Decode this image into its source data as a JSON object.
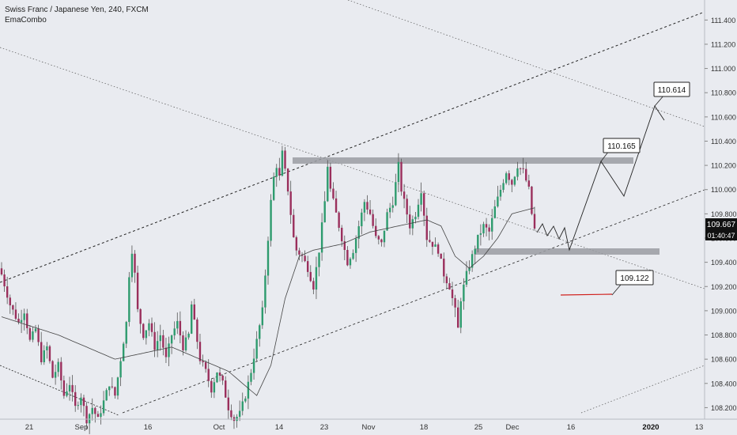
{
  "legend": {
    "symbol_line": "Swiss Franc / Japanese Yen, 240, FXCM",
    "indicator": "EmaCombo"
  },
  "colors": {
    "background": "#e9ebf0",
    "up_candle": "#2e9b6e",
    "down_candle": "#9a2f5c",
    "wick": "#555555",
    "zone": "#9a9ca2",
    "target_line": "#d0201c",
    "ema": "#444444",
    "last_price_bg": "#111111"
  },
  "chart_data": {
    "type": "candlestick",
    "symbol": "CHFJPY",
    "timeframe": "240",
    "source": "FXCM",
    "ylim": [
      108.17,
      111.5
    ],
    "y_ticks": [
      111.4,
      111.2,
      111.0,
      110.8,
      110.6,
      110.4,
      110.2,
      110.0,
      109.8,
      109.6,
      109.4,
      109.2,
      109.0,
      108.8,
      108.6,
      108.4,
      108.2
    ],
    "x_ticks": [
      "21",
      "Sep",
      "16",
      "Oct",
      "14",
      "23",
      "Nov",
      "18",
      "25",
      "Dec",
      "16",
      "2020",
      "13"
    ],
    "last_price": "109.667",
    "countdown": "01:40:47",
    "annotations": [
      {
        "label": "110.614",
        "value": 110.614
      },
      {
        "label": "110.165",
        "value": 110.165
      },
      {
        "label": "109.122",
        "value": 109.122
      }
    ],
    "resistance_zone": [
      110.17,
      110.22
    ],
    "support_zone": [
      109.44,
      109.49
    ],
    "target_line_value": 109.13,
    "price_path": [
      [
        0,
        109.3
      ],
      [
        3,
        109.05
      ],
      [
        6,
        108.9
      ],
      [
        8,
        109.0
      ],
      [
        10,
        108.75
      ],
      [
        12,
        108.85
      ],
      [
        14,
        108.6
      ],
      [
        16,
        108.7
      ],
      [
        18,
        108.45
      ],
      [
        20,
        108.55
      ],
      [
        22,
        108.3
      ],
      [
        24,
        108.4
      ],
      [
        26,
        108.2
      ],
      [
        28,
        108.3
      ],
      [
        30,
        108.1
      ],
      [
        32,
        108.2
      ],
      [
        34,
        108.1
      ],
      [
        36,
        108.25
      ],
      [
        38,
        108.4
      ],
      [
        40,
        108.3
      ],
      [
        42,
        108.6
      ],
      [
        44,
        108.9
      ],
      [
        45,
        109.3
      ],
      [
        46,
        109.5
      ],
      [
        47,
        109.3
      ],
      [
        48,
        109.0
      ],
      [
        50,
        108.8
      ],
      [
        52,
        108.9
      ],
      [
        54,
        108.7
      ],
      [
        56,
        108.8
      ],
      [
        58,
        108.6
      ],
      [
        60,
        108.8
      ],
      [
        62,
        108.9
      ],
      [
        64,
        108.7
      ],
      [
        66,
        108.8
      ],
      [
        67,
        109.05
      ],
      [
        68,
        108.9
      ],
      [
        70,
        108.6
      ],
      [
        72,
        108.5
      ],
      [
        74,
        108.35
      ],
      [
        76,
        108.5
      ],
      [
        78,
        108.4
      ],
      [
        80,
        108.2
      ],
      [
        82,
        108.1
      ],
      [
        84,
        108.15
      ],
      [
        86,
        108.3
      ],
      [
        88,
        108.5
      ],
      [
        90,
        108.75
      ],
      [
        92,
        109.0
      ],
      [
        93,
        109.3
      ],
      [
        94,
        109.6
      ],
      [
        95,
        109.9
      ],
      [
        96,
        110.1
      ],
      [
        97,
        110.2
      ],
      [
        98,
        110.1
      ],
      [
        99,
        110.3
      ],
      [
        100,
        110.15
      ],
      [
        101,
        110.0
      ],
      [
        102,
        109.8
      ],
      [
        103,
        109.6
      ],
      [
        104,
        109.5
      ],
      [
        106,
        109.45
      ],
      [
        108,
        109.35
      ],
      [
        110,
        109.2
      ],
      [
        112,
        109.5
      ],
      [
        114,
        109.9
      ],
      [
        115,
        110.2
      ],
      [
        116,
        110.0
      ],
      [
        118,
        109.8
      ],
      [
        120,
        109.6
      ],
      [
        122,
        109.4
      ],
      [
        124,
        109.5
      ],
      [
        126,
        109.7
      ],
      [
        128,
        109.9
      ],
      [
        130,
        109.8
      ],
      [
        132,
        109.6
      ],
      [
        134,
        109.55
      ],
      [
        136,
        109.8
      ],
      [
        138,
        109.9
      ],
      [
        140,
        110.2
      ],
      [
        141,
        110.0
      ],
      [
        142,
        109.9
      ],
      [
        144,
        109.7
      ],
      [
        146,
        109.8
      ],
      [
        148,
        110.0
      ],
      [
        150,
        109.6
      ],
      [
        152,
        109.55
      ],
      [
        154,
        109.5
      ],
      [
        156,
        109.3
      ],
      [
        158,
        109.2
      ],
      [
        160,
        109.0
      ],
      [
        161,
        108.85
      ],
      [
        162,
        109.1
      ],
      [
        164,
        109.3
      ],
      [
        166,
        109.45
      ],
      [
        168,
        109.6
      ],
      [
        170,
        109.7
      ],
      [
        172,
        109.65
      ],
      [
        174,
        109.85
      ],
      [
        176,
        110.0
      ],
      [
        178,
        110.15
      ],
      [
        180,
        110.05
      ],
      [
        182,
        110.2
      ],
      [
        184,
        110.15
      ],
      [
        186,
        110.0
      ],
      [
        187,
        109.8
      ],
      [
        188,
        109.67
      ]
    ],
    "ema_path": [
      [
        0,
        108.95
      ],
      [
        20,
        108.8
      ],
      [
        40,
        108.6
      ],
      [
        60,
        108.7
      ],
      [
        80,
        108.5
      ],
      [
        90,
        108.3
      ],
      [
        95,
        108.55
      ],
      [
        100,
        109.1
      ],
      [
        105,
        109.45
      ],
      [
        110,
        109.5
      ],
      [
        120,
        109.55
      ],
      [
        130,
        109.65
      ],
      [
        140,
        109.7
      ],
      [
        150,
        109.75
      ],
      [
        155,
        109.7
      ],
      [
        160,
        109.45
      ],
      [
        165,
        109.35
      ],
      [
        170,
        109.45
      ],
      [
        175,
        109.6
      ],
      [
        180,
        109.8
      ],
      [
        188,
        109.85
      ]
    ]
  }
}
